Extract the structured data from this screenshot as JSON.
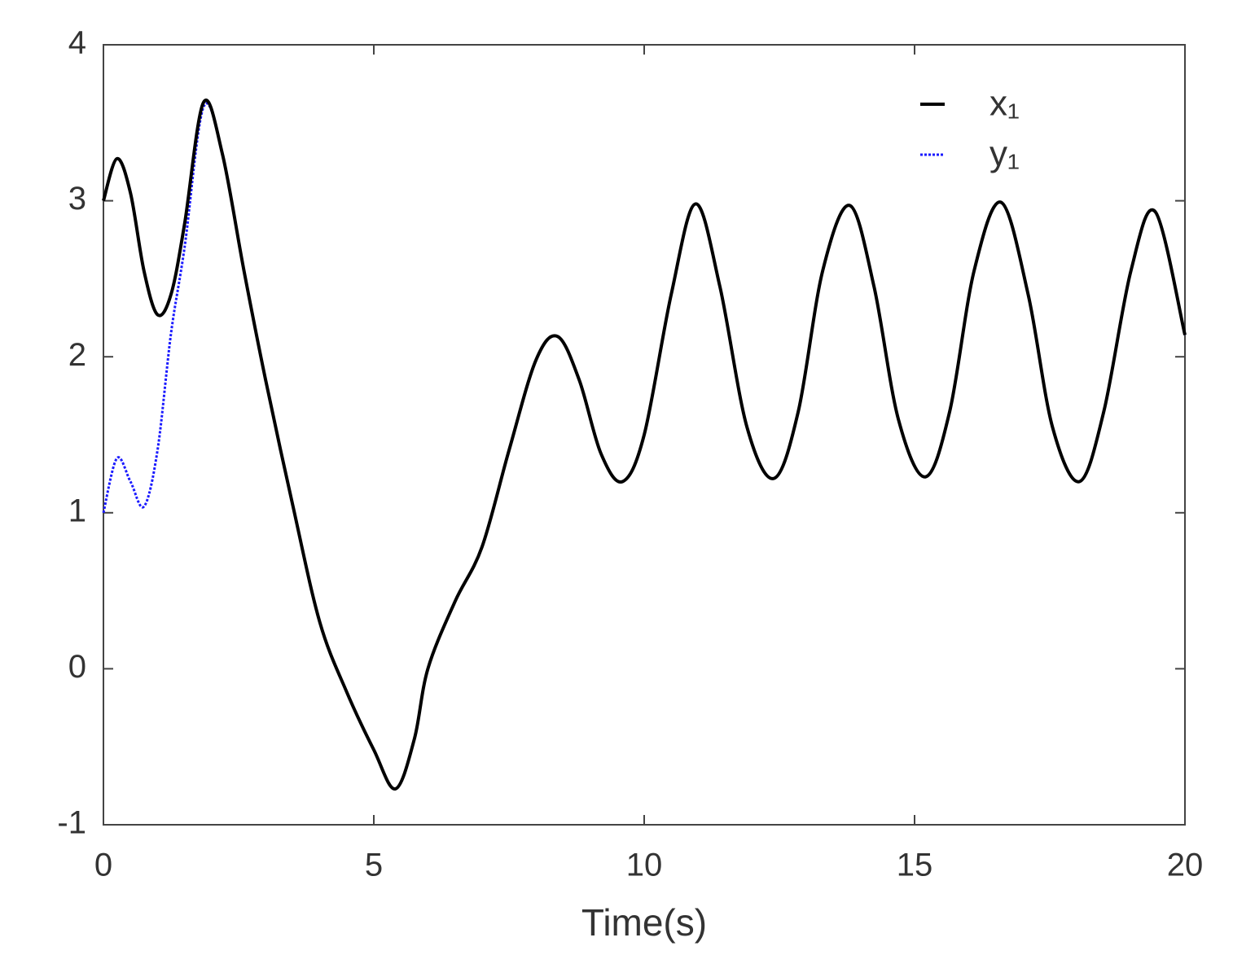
{
  "chart_data": {
    "type": "line",
    "x": [
      0,
      0.25,
      0.5,
      0.75,
      1.0,
      1.25,
      1.5,
      1.85,
      2.2,
      2.6,
      3.0,
      3.5,
      4.0,
      4.5,
      5.0,
      5.4,
      5.75,
      6.0,
      6.5,
      7.0,
      7.5,
      8.0,
      8.4,
      8.8,
      9.2,
      9.6,
      10.0,
      10.5,
      10.95,
      11.4,
      11.9,
      12.4,
      12.85,
      13.3,
      13.8,
      14.25,
      14.7,
      15.2,
      15.65,
      16.1,
      16.6,
      17.1,
      17.55,
      18.05,
      18.5,
      19.0,
      19.45,
      20
    ],
    "series": [
      {
        "name": "x₁",
        "color": "#000000",
        "dash": false,
        "values": [
          3.0,
          3.27,
          3.05,
          2.55,
          2.27,
          2.4,
          2.85,
          3.63,
          3.3,
          2.55,
          1.85,
          1.05,
          0.3,
          -0.15,
          -0.52,
          -0.77,
          -0.45,
          0.0,
          0.43,
          0.78,
          1.4,
          1.98,
          2.13,
          1.85,
          1.38,
          1.2,
          1.5,
          2.4,
          2.98,
          2.45,
          1.55,
          1.22,
          1.65,
          2.55,
          2.97,
          2.45,
          1.6,
          1.23,
          1.65,
          2.55,
          2.99,
          2.4,
          1.55,
          1.2,
          1.65,
          2.55,
          2.93,
          2.14
        ]
      },
      {
        "name": "y₁",
        "color": "#1a1aff",
        "dash": true,
        "values": [
          1.0,
          1.35,
          1.2,
          1.04,
          1.4,
          2.15,
          2.7,
          3.6,
          3.3,
          2.55,
          1.85,
          1.05,
          0.3,
          -0.15,
          -0.52,
          -0.77,
          -0.45,
          0.0,
          0.43,
          0.78,
          1.4,
          1.98,
          2.13,
          1.85,
          1.38,
          1.2,
          1.5,
          2.4,
          2.98,
          2.45,
          1.55,
          1.22,
          1.65,
          2.55,
          2.97,
          2.45,
          1.6,
          1.23,
          1.65,
          2.55,
          2.99,
          2.4,
          1.55,
          1.2,
          1.65,
          2.55,
          2.93,
          2.14
        ]
      }
    ],
    "xlabel": "Time(s)",
    "xlim": [
      0,
      20
    ],
    "xticks": [
      0,
      5,
      10,
      15,
      20
    ],
    "ylim": [
      -1,
      4
    ],
    "yticks": [
      -1,
      0,
      1,
      2,
      3,
      4
    ],
    "grid": false,
    "legend": "upper right"
  }
}
